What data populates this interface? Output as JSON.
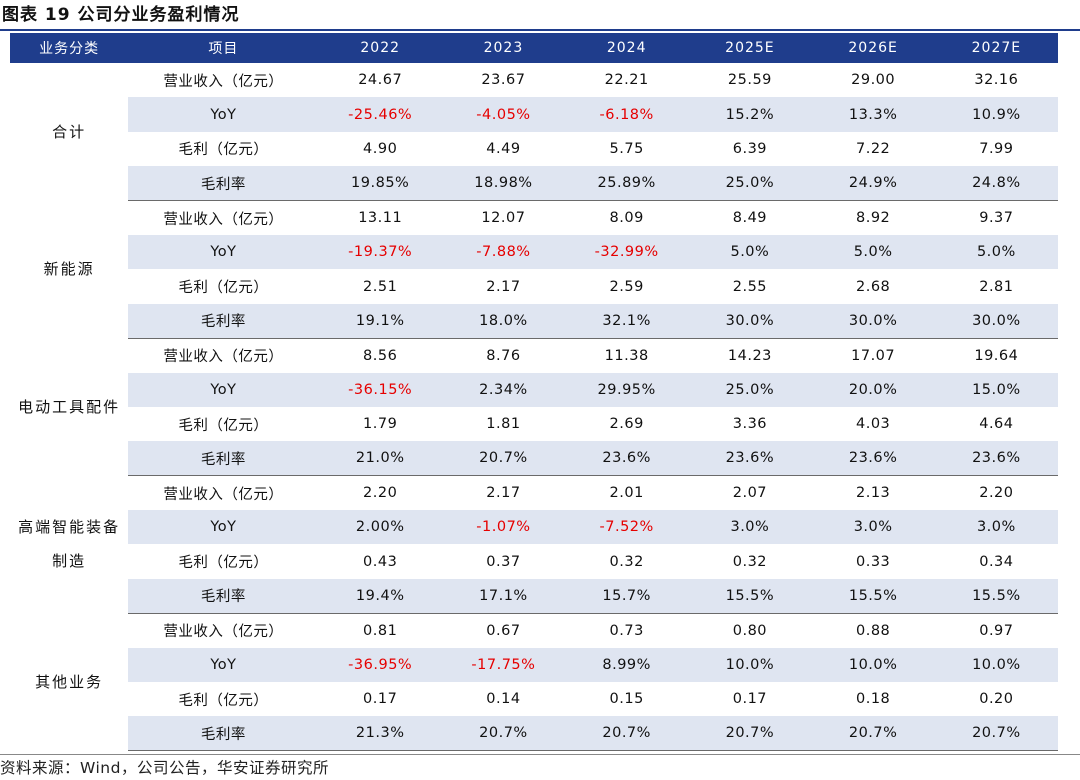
{
  "figure_title": "图表 19 公司分业务盈利情况",
  "header": {
    "category": "业务分类",
    "item": "项目",
    "years": [
      "2022",
      "2023",
      "2024",
      "2025E",
      "2026E",
      "2027E"
    ]
  },
  "groups": [
    {
      "name": "合计",
      "rows": [
        {
          "label": "营业收入（亿元）",
          "values": [
            "24.67",
            "23.67",
            "22.21",
            "25.59",
            "29.00",
            "32.16"
          ],
          "negative": [
            false,
            false,
            false,
            false,
            false,
            false
          ]
        },
        {
          "label": "YoY",
          "values": [
            "-25.46%",
            "-4.05%",
            "-6.18%",
            "15.2%",
            "13.3%",
            "10.9%"
          ],
          "negative": [
            true,
            true,
            true,
            false,
            false,
            false
          ]
        },
        {
          "label": "毛利（亿元）",
          "values": [
            "4.90",
            "4.49",
            "5.75",
            "6.39",
            "7.22",
            "7.99"
          ],
          "negative": [
            false,
            false,
            false,
            false,
            false,
            false
          ]
        },
        {
          "label": "毛利率",
          "values": [
            "19.85%",
            "18.98%",
            "25.89%",
            "25.0%",
            "24.9%",
            "24.8%"
          ],
          "negative": [
            false,
            false,
            false,
            false,
            false,
            false
          ]
        }
      ]
    },
    {
      "name": "新能源",
      "rows": [
        {
          "label": "营业收入（亿元）",
          "values": [
            "13.11",
            "12.07",
            "8.09",
            "8.49",
            "8.92",
            "9.37"
          ],
          "negative": [
            false,
            false,
            false,
            false,
            false,
            false
          ]
        },
        {
          "label": "YoY",
          "values": [
            "-19.37%",
            "-7.88%",
            "-32.99%",
            "5.0%",
            "5.0%",
            "5.0%"
          ],
          "negative": [
            true,
            true,
            true,
            false,
            false,
            false
          ]
        },
        {
          "label": "毛利（亿元）",
          "values": [
            "2.51",
            "2.17",
            "2.59",
            "2.55",
            "2.68",
            "2.81"
          ],
          "negative": [
            false,
            false,
            false,
            false,
            false,
            false
          ]
        },
        {
          "label": "毛利率",
          "values": [
            "19.1%",
            "18.0%",
            "32.1%",
            "30.0%",
            "30.0%",
            "30.0%"
          ],
          "negative": [
            false,
            false,
            false,
            false,
            false,
            false
          ]
        }
      ]
    },
    {
      "name": "电动工具配件",
      "rows": [
        {
          "label": "营业收入（亿元）",
          "values": [
            "8.56",
            "8.76",
            "11.38",
            "14.23",
            "17.07",
            "19.64"
          ],
          "negative": [
            false,
            false,
            false,
            false,
            false,
            false
          ]
        },
        {
          "label": "YoY",
          "values": [
            "-36.15%",
            "2.34%",
            "29.95%",
            "25.0%",
            "20.0%",
            "15.0%"
          ],
          "negative": [
            true,
            false,
            false,
            false,
            false,
            false
          ]
        },
        {
          "label": "毛利（亿元）",
          "values": [
            "1.79",
            "1.81",
            "2.69",
            "3.36",
            "4.03",
            "4.64"
          ],
          "negative": [
            false,
            false,
            false,
            false,
            false,
            false
          ]
        },
        {
          "label": "毛利率",
          "values": [
            "21.0%",
            "20.7%",
            "23.6%",
            "23.6%",
            "23.6%",
            "23.6%"
          ],
          "negative": [
            false,
            false,
            false,
            false,
            false,
            false
          ]
        }
      ]
    },
    {
      "name": "高端智能装备制造",
      "rows": [
        {
          "label": "营业收入（亿元）",
          "values": [
            "2.20",
            "2.17",
            "2.01",
            "2.07",
            "2.13",
            "2.20"
          ],
          "negative": [
            false,
            false,
            false,
            false,
            false,
            false
          ]
        },
        {
          "label": "YoY",
          "values": [
            "2.00%",
            "-1.07%",
            "-7.52%",
            "3.0%",
            "3.0%",
            "3.0%"
          ],
          "negative": [
            false,
            true,
            true,
            false,
            false,
            false
          ]
        },
        {
          "label": "毛利（亿元）",
          "values": [
            "0.43",
            "0.37",
            "0.32",
            "0.32",
            "0.33",
            "0.34"
          ],
          "negative": [
            false,
            false,
            false,
            false,
            false,
            false
          ]
        },
        {
          "label": "毛利率",
          "values": [
            "19.4%",
            "17.1%",
            "15.7%",
            "15.5%",
            "15.5%",
            "15.5%"
          ],
          "negative": [
            false,
            false,
            false,
            false,
            false,
            false
          ]
        }
      ]
    },
    {
      "name": "其他业务",
      "rows": [
        {
          "label": "营业收入（亿元）",
          "values": [
            "0.81",
            "0.67",
            "0.73",
            "0.80",
            "0.88",
            "0.97"
          ],
          "negative": [
            false,
            false,
            false,
            false,
            false,
            false
          ]
        },
        {
          "label": "YoY",
          "values": [
            "-36.95%",
            "-17.75%",
            "8.99%",
            "10.0%",
            "10.0%",
            "10.0%"
          ],
          "negative": [
            true,
            true,
            false,
            false,
            false,
            false
          ]
        },
        {
          "label": "毛利（亿元）",
          "values": [
            "0.17",
            "0.14",
            "0.15",
            "0.17",
            "0.18",
            "0.20"
          ],
          "negative": [
            false,
            false,
            false,
            false,
            false,
            false
          ]
        },
        {
          "label": "毛利率",
          "values": [
            "21.3%",
            "20.7%",
            "20.7%",
            "20.7%",
            "20.7%",
            "20.7%"
          ],
          "negative": [
            false,
            false,
            false,
            false,
            false,
            false
          ]
        }
      ]
    }
  ],
  "source": "资料来源：Wind，公司公告，华安证券研究所",
  "colors": {
    "header_bg": "#1f3d8c",
    "shade": "#dfe5f1",
    "negative": "#e60000"
  }
}
